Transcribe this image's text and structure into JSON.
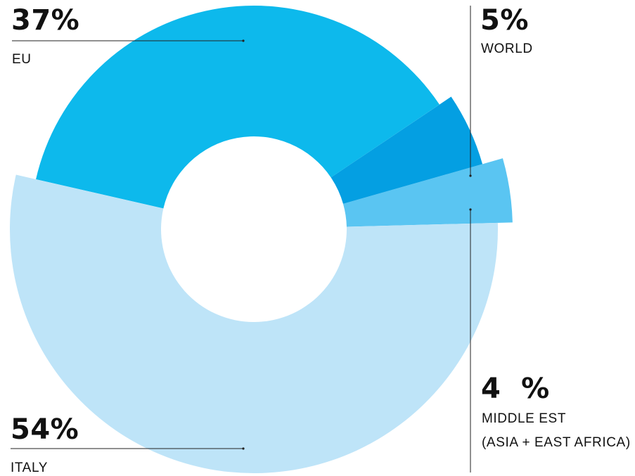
{
  "chart_data": {
    "type": "pie",
    "style": "exploded donut",
    "slices": [
      {
        "label": "ITALY",
        "value": 54,
        "value_label": "54%",
        "color": "#BEE4F8"
      },
      {
        "label": "EU",
        "value": 37,
        "value_label": "37%",
        "color": "#0DB9EC"
      },
      {
        "label": "WORLD",
        "value": 5,
        "value_label": "5%",
        "color": "#049FE2"
      },
      {
        "label": "MIDDLE EST",
        "label_line2": "(ASIA + EAST AFRICA)",
        "value": 4,
        "value_label": "4  %",
        "color": "#5AC5F2"
      }
    ]
  }
}
